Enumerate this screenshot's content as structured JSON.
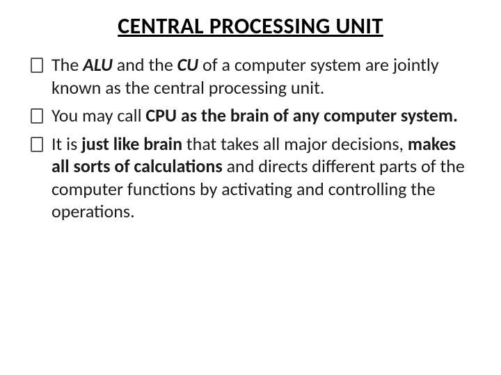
{
  "title": "CENTRAL PROCESSING UNIT",
  "bullets": [
    {
      "segments": [
        {
          "text": "The ",
          "bold": false,
          "italic": false
        },
        {
          "text": "ALU",
          "bold": true,
          "italic": true
        },
        {
          "text": " and the ",
          "bold": false,
          "italic": false
        },
        {
          "text": "CU",
          "bold": true,
          "italic": true
        },
        {
          "text": " of a computer system are jointly known as the central processing unit.",
          "bold": false,
          "italic": false
        }
      ]
    },
    {
      "segments": [
        {
          "text": "You may call ",
          "bold": false,
          "italic": false
        },
        {
          "text": "CPU as the brain of any computer system.",
          "bold": true,
          "italic": false
        }
      ]
    },
    {
      "segments": [
        {
          "text": "It is ",
          "bold": false,
          "italic": false
        },
        {
          "text": "just like brain",
          "bold": true,
          "italic": false
        },
        {
          "text": " that takes all major decisions, ",
          "bold": false,
          "italic": false
        },
        {
          "text": "makes all sorts of calculations",
          "bold": true,
          "italic": false
        },
        {
          "text": " and directs different parts of the computer functions by activating and controlling the operations.",
          "bold": false,
          "italic": false
        }
      ]
    }
  ],
  "style": {
    "background_color": "#ffffff",
    "text_color": "#000000",
    "title_fontsize": 32,
    "body_fontsize": 26,
    "font_family": "Calibri, Arial, sans-serif"
  }
}
